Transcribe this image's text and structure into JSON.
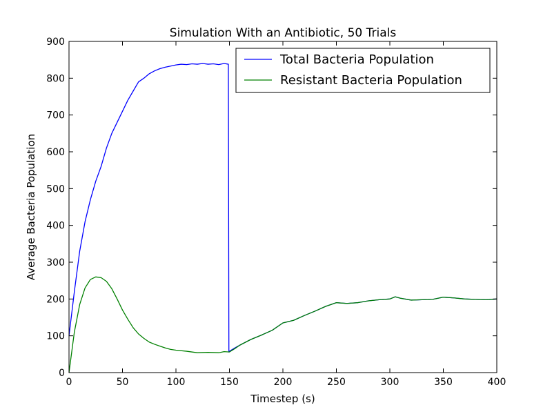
{
  "chart_data": {
    "type": "line",
    "title": "Simulation With an Antibiotic, 50 Trials",
    "xlabel": "Timestep (s)",
    "ylabel": "Average Bacteria Population",
    "xlim": [
      0,
      400
    ],
    "ylim": [
      0,
      900
    ],
    "xticks": [
      "0",
      "50",
      "100",
      "150",
      "200",
      "250",
      "300",
      "350",
      "400"
    ],
    "yticks": [
      "0",
      "100",
      "200",
      "300",
      "400",
      "500",
      "600",
      "700",
      "800",
      "900"
    ],
    "grid": false,
    "legend_position": "top-right",
    "series": [
      {
        "name": "Total Bacteria Population",
        "color": "#0000ff",
        "x": [
          0,
          5,
          10,
          15,
          20,
          25,
          30,
          35,
          40,
          45,
          50,
          55,
          60,
          65,
          70,
          75,
          80,
          85,
          90,
          95,
          100,
          105,
          110,
          115,
          120,
          125,
          130,
          135,
          140,
          145,
          149,
          149.5,
          150,
          155,
          160,
          170,
          180,
          190,
          200,
          210,
          220,
          230,
          240,
          250,
          260,
          270,
          280,
          290,
          300,
          305,
          310,
          320,
          330,
          340,
          350,
          360,
          370,
          380,
          390,
          400
        ],
        "y": [
          100,
          220,
          330,
          410,
          470,
          520,
          560,
          610,
          650,
          680,
          710,
          740,
          765,
          790,
          800,
          812,
          820,
          826,
          830,
          833,
          836,
          838,
          837,
          839,
          838,
          840,
          838,
          839,
          837,
          840,
          838,
          56,
          58,
          67,
          75,
          90,
          102,
          115,
          135,
          142,
          155,
          167,
          180,
          190,
          188,
          190,
          195,
          198,
          200,
          206,
          202,
          197,
          198,
          199,
          205,
          203,
          200,
          199,
          198,
          200
        ]
      },
      {
        "name": "Resistant Bacteria Population",
        "color": "#008000",
        "x": [
          0,
          5,
          10,
          15,
          20,
          25,
          30,
          35,
          40,
          45,
          50,
          55,
          60,
          65,
          70,
          75,
          80,
          85,
          90,
          95,
          100,
          110,
          120,
          130,
          140,
          145,
          150,
          155,
          160,
          170,
          180,
          190,
          200,
          210,
          220,
          230,
          240,
          250,
          260,
          270,
          280,
          290,
          300,
          305,
          310,
          320,
          330,
          340,
          350,
          360,
          370,
          380,
          390,
          400
        ],
        "y": [
          0,
          110,
          185,
          230,
          253,
          260,
          258,
          248,
          228,
          200,
          170,
          145,
          122,
          105,
          93,
          83,
          77,
          72,
          67,
          63,
          61,
          58,
          54,
          55,
          54,
          57,
          56,
          65,
          75,
          90,
          102,
          115,
          135,
          142,
          155,
          167,
          180,
          190,
          188,
          190,
          195,
          198,
          200,
          206,
          202,
          197,
          198,
          199,
          205,
          203,
          200,
          199,
          198,
          200
        ]
      }
    ]
  }
}
